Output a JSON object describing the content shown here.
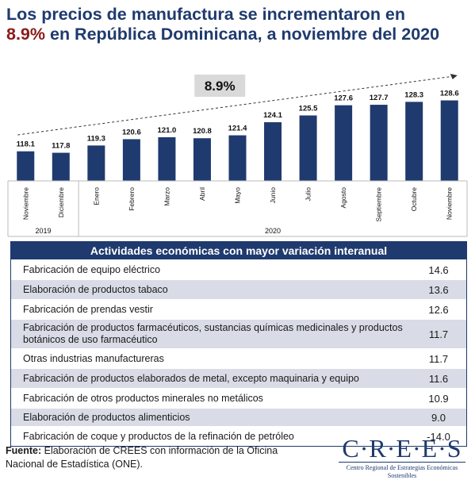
{
  "title_parts": {
    "line1": "Los precios de manufactura se incrementaron en",
    "highlight": "8.9%",
    "line2_rest": " en República Dominicana, a noviembre del 2020"
  },
  "chart_data": {
    "type": "bar",
    "categories": [
      "Noviembre",
      "Diciembre",
      "Enero",
      "Febrero",
      "Marzo",
      "Abril",
      "Mayo",
      "Junio",
      "Julio",
      "Agosto",
      "Septiembre",
      "Octubre",
      "Noviembre"
    ],
    "values": [
      118.1,
      117.8,
      119.3,
      120.6,
      121.0,
      120.8,
      121.4,
      124.1,
      125.5,
      127.6,
      127.7,
      128.3,
      128.6
    ],
    "value_labels": [
      "118.1",
      "117.8",
      "119.3",
      "120.6",
      "121.0",
      "120.8",
      "121.4",
      "124.1",
      "125.5",
      "127.6",
      "127.7",
      "128.3",
      "128.6"
    ],
    "year_groups": [
      {
        "label": "2019",
        "count": 2
      },
      {
        "label": "2020",
        "count": 11
      }
    ],
    "annotation": "8.9%",
    "bar_color": "#1f3a6e"
  },
  "table": {
    "header": "Actividades económicas con mayor variación interanual",
    "rows": [
      {
        "label": "Fabricación de equipo eléctrico",
        "value": "14.6"
      },
      {
        "label": "Elaboración de productos tabaco",
        "value": "13.6"
      },
      {
        "label": "Fabricación de prendas vestir",
        "value": "12.6"
      },
      {
        "label": "Fabricación de productos farmacéuticos, sustancias químicas medicinales y productos botánicos de uso farmacéutico",
        "value": "11.7"
      },
      {
        "label": "Otras industrias manufactureras",
        "value": "11.7"
      },
      {
        "label": "Fabricación de productos elaborados de metal, excepto maquinaria y equipo",
        "value": "11.6"
      },
      {
        "label": "Fabricación de otros productos minerales no metálicos",
        "value": "10.9"
      },
      {
        "label": "Elaboración de productos alimenticios",
        "value": "9.0"
      },
      {
        "label": "Fabricación de coque y productos de la refinación de petróleo",
        "value": "-14.0"
      }
    ]
  },
  "footer": {
    "label": "Fuente:",
    "text": " Elaboración de CREES con información de la Oficina Nacional de Estadística (ONE)."
  },
  "logo": {
    "name": "C·R·E·E·S",
    "subtitle": "Centro Regional de Estrategias Económicas Sostenibles"
  },
  "colors": {
    "navy": "#1f3a6e",
    "highlight": "#8b1a1a",
    "row_alt": "#d9dce6",
    "annotation_box": "#d9d9d9"
  }
}
